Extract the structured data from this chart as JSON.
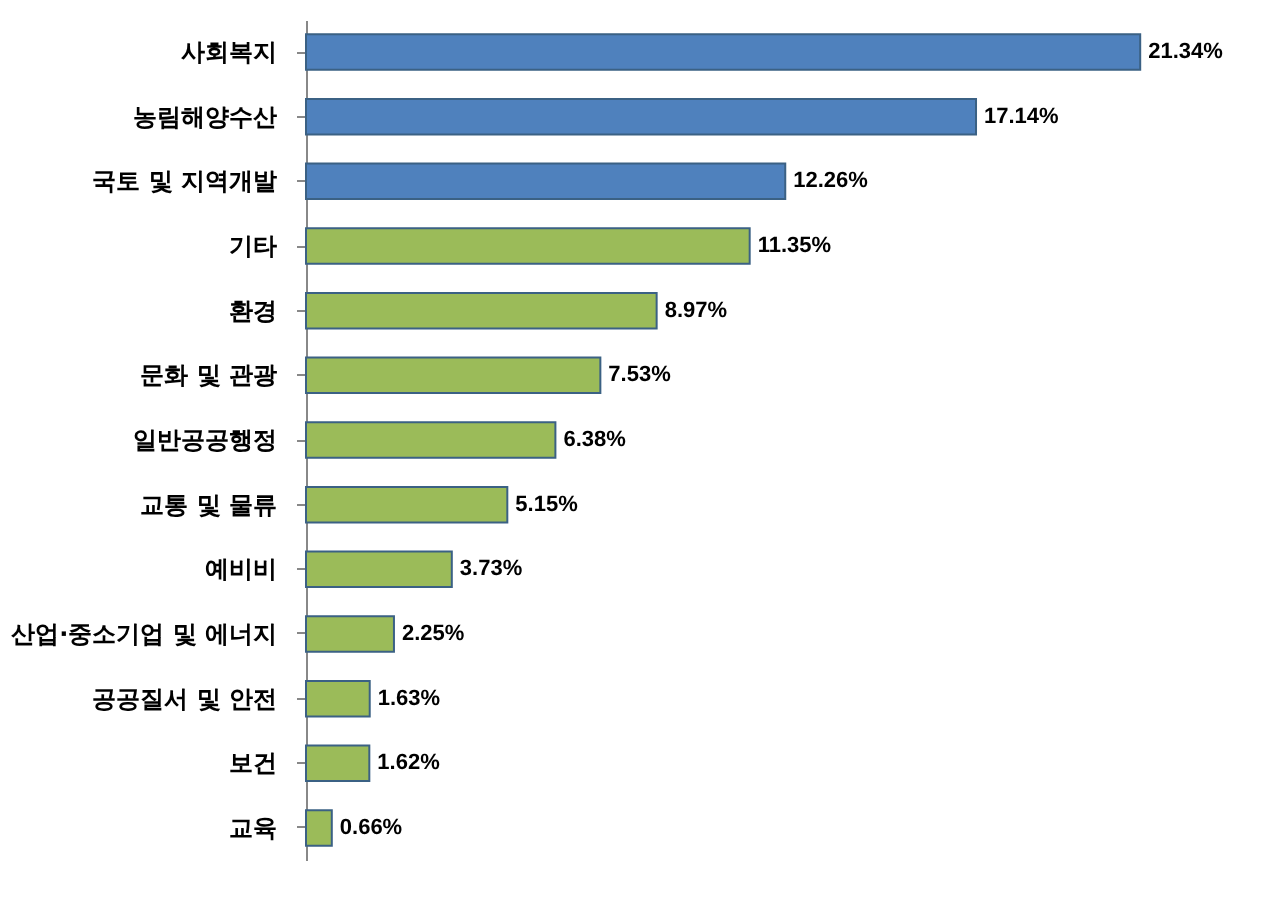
{
  "chart_data": {
    "type": "bar",
    "orientation": "horizontal",
    "categories": [
      "사회복지",
      "농림해양수산",
      "국토 및 지역개발",
      "기타",
      "환경",
      "문화 및 관광",
      "일반공공행정",
      "교통 및 물류",
      "예비비",
      "산업·중소기업 및 에너지",
      "공공질서 및 안전",
      "보건",
      "교육"
    ],
    "values": [
      21.34,
      17.14,
      12.26,
      11.35,
      8.97,
      7.53,
      6.38,
      5.15,
      3.73,
      2.25,
      1.63,
      1.62,
      0.66
    ],
    "value_labels": [
      "21.34%",
      "17.14%",
      "12.26%",
      "11.35%",
      "8.97%",
      "7.53%",
      "6.38%",
      "5.15%",
      "3.73%",
      "2.25%",
      "1.63%",
      "1.62%",
      "0.66%"
    ],
    "colors": [
      "#4f81bd",
      "#4f81bd",
      "#4f81bd",
      "#9bbb59",
      "#9bbb59",
      "#9bbb59",
      "#9bbb59",
      "#9bbb59",
      "#9bbb59",
      "#9bbb59",
      "#9bbb59",
      "#9bbb59",
      "#9bbb59"
    ]
  }
}
